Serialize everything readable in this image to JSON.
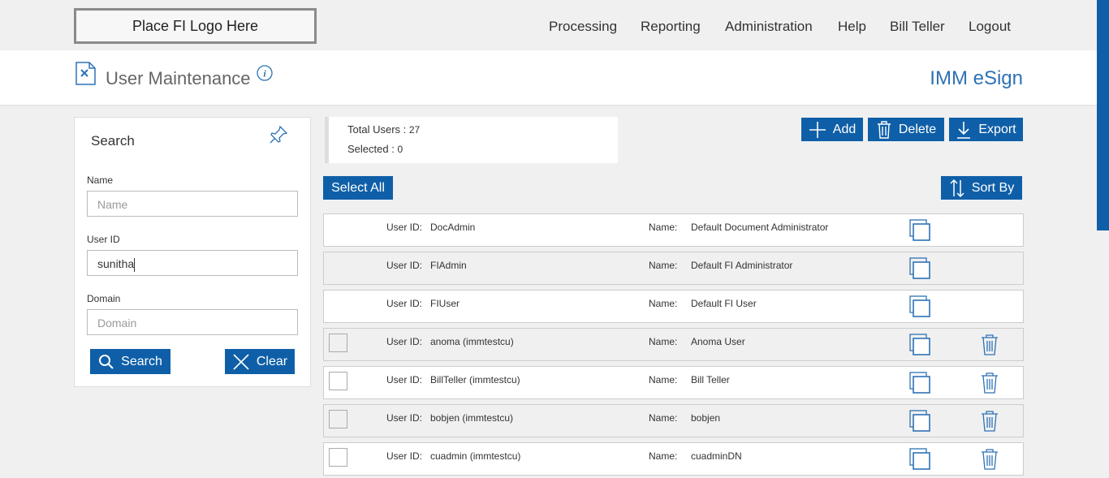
{
  "header": {
    "logo": "Place FI Logo Here",
    "nav": [
      "Processing",
      "Reporting",
      "Administration",
      "Help",
      "Bill Teller",
      "Logout"
    ]
  },
  "page": {
    "title": "User Maintenance",
    "app": "IMM eSign"
  },
  "search": {
    "title": "Search",
    "fields": [
      {
        "label": "Name",
        "placeholder": "Name"
      },
      {
        "label": "User ID",
        "value": "sunitha"
      },
      {
        "label": "Domain",
        "placeholder": "Domain"
      }
    ],
    "buttons": [
      "Search",
      "Clear"
    ]
  },
  "summary": {
    "total_label": "Total Users :",
    "total": 27,
    "selected_label": "Selected :",
    "selected": 0
  },
  "actions": [
    "Add",
    "Delete",
    "Export"
  ],
  "select_all": "Select All",
  "sort_by": "Sort By",
  "users": {
    "id_label": "User ID:",
    "name_label": "Name:",
    "rows": [
      {
        "id": "DocAdmin",
        "name": "Default Document Administrator",
        "selectable": false
      },
      {
        "id": "FIAdmin",
        "name": "Default FI Administrator",
        "selectable": false
      },
      {
        "id": "FIUser",
        "name": "Default FI User",
        "selectable": false
      },
      {
        "id": "anoma (immtestcu)",
        "name": "Anoma User",
        "selectable": true
      },
      {
        "id": "BillTeller (immtestcu)",
        "name": "Bill Teller",
        "selectable": true
      },
      {
        "id": "bobjen (immtestcu)",
        "name": "bobjen",
        "selectable": true
      },
      {
        "id": "cuadmin (immtestcu)",
        "name": "cuadminDN",
        "selectable": true
      }
    ]
  }
}
